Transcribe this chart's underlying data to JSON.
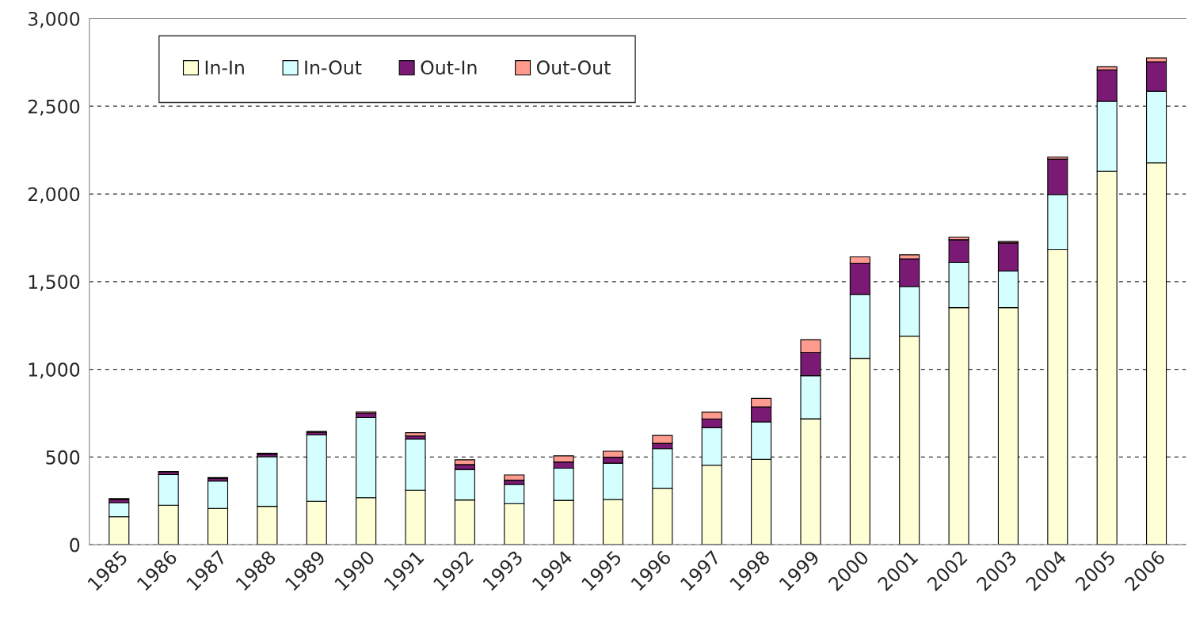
{
  "chart_data": {
    "type": "bar",
    "stacked": true,
    "categories": [
      "1985",
      "1986",
      "1987",
      "1988",
      "1989",
      "1990",
      "1991",
      "1992",
      "1993",
      "1994",
      "1995",
      "1996",
      "1997",
      "1998",
      "1999",
      "2000",
      "2001",
      "2002",
      "2003",
      "2004",
      "2005",
      "2006"
    ],
    "series": [
      {
        "name": "In-In",
        "color": "#ffffd5",
        "values": [
          160,
          225,
          207,
          219,
          248,
          268,
          311,
          255,
          234,
          253,
          258,
          321,
          453,
          487,
          718,
          1063,
          1189,
          1352,
          1352,
          1682,
          2130,
          2177
        ]
      },
      {
        "name": "In-Out",
        "color": "#d5ffff",
        "values": [
          80,
          175,
          156,
          283,
          378,
          457,
          291,
          174,
          110,
          183,
          207,
          227,
          215,
          213,
          246,
          364,
          283,
          258,
          209,
          315,
          398,
          408
        ]
      },
      {
        "name": "Out-In",
        "color": "#7b1a74",
        "values": [
          18,
          15,
          15,
          15,
          15,
          25,
          18,
          28,
          24,
          36,
          34,
          30,
          49,
          86,
          131,
          178,
          158,
          129,
          160,
          202,
          179,
          169
        ]
      },
      {
        "name": "Out-Out",
        "color": "#ff9a8f",
        "values": [
          5,
          3,
          5,
          5,
          5,
          8,
          19,
          27,
          30,
          35,
          34,
          45,
          39,
          48,
          74,
          36,
          23,
          15,
          8,
          12,
          18,
          22
        ]
      }
    ],
    "ylim": [
      0,
      3000
    ],
    "yticks": [
      0,
      {
        "value": 500,
        "label": "500"
      },
      {
        "value": 1000,
        "label": "1,000"
      },
      {
        "value": 1500,
        "label": "1,500"
      },
      {
        "value": 2000,
        "label": "2,000"
      },
      {
        "value": 2500,
        "label": "2,500"
      },
      {
        "value": 3000,
        "label": "3,000"
      }
    ],
    "grid": "y",
    "legend": "top left"
  }
}
